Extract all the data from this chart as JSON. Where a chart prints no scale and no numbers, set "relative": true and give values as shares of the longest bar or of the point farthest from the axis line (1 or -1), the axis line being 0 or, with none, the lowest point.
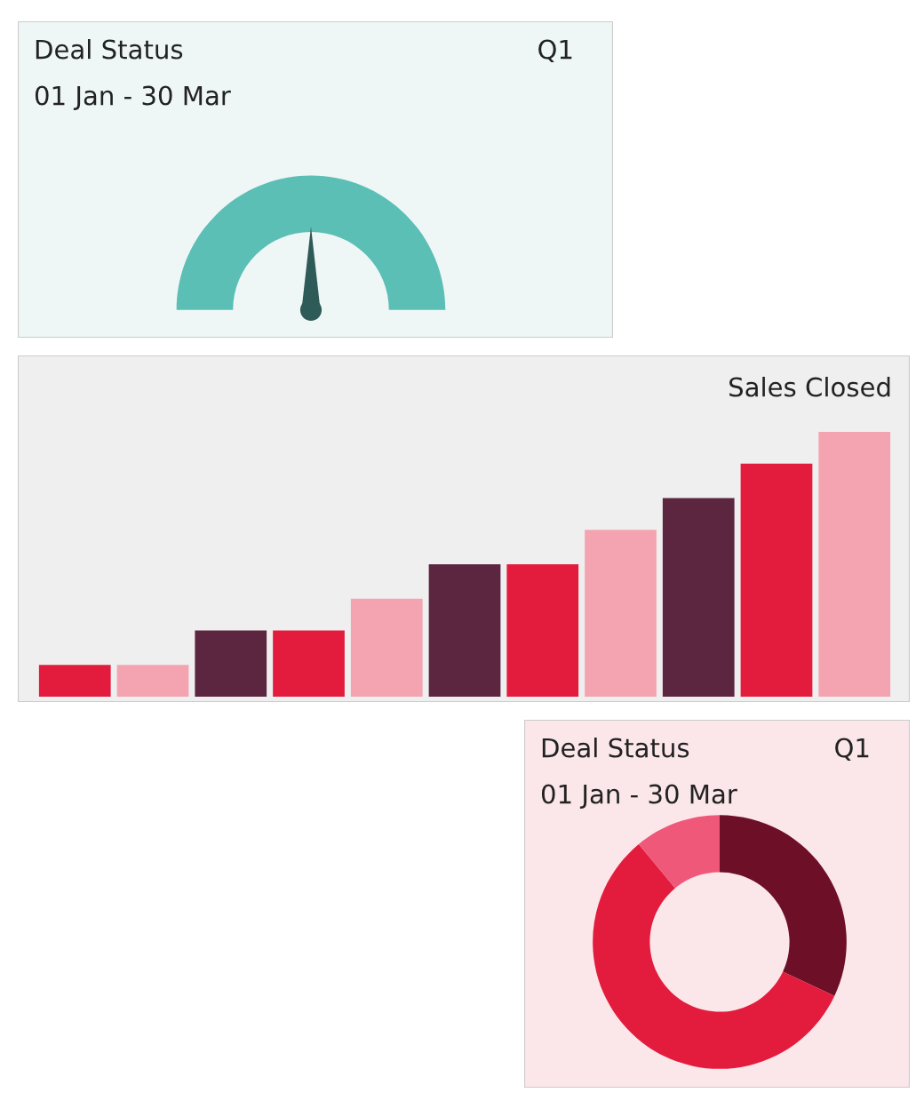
{
  "chart_data": [
    {
      "type": "pie",
      "title": "Deal Status",
      "subtitle": "01 Jan - 30 Mar",
      "annotations": [
        "Q1"
      ],
      "categories": [
        null
      ],
      "values": [
        100
      ],
      "colors": [
        "#5bbfb5"
      ],
      "needle": null
    },
    {
      "type": "bar",
      "title": "Sales Closed",
      "relative": true,
      "categories": [
        null,
        null,
        null,
        null,
        null,
        null,
        null,
        null,
        null,
        null,
        null
      ],
      "values": [
        0.12,
        0.12,
        0.25,
        0.25,
        0.37,
        0.5,
        0.5,
        0.63,
        0.75,
        0.88,
        1.0
      ],
      "colors": [
        "#e31c3d",
        "#f4a3b0",
        "#5c2640",
        "#e31c3d",
        "#f4a3b0",
        "#5c2640",
        "#e31c3d",
        "#f4a3b0",
        "#5c2640",
        "#e31c3d",
        "#f4a3b0"
      ]
    },
    {
      "type": "donut",
      "title": "Deal Status",
      "subtitle": "01 Jan - 30 Mar",
      "annotations": [
        "Q1"
      ],
      "categories": [
        null,
        null,
        null
      ],
      "values": [
        32,
        57,
        11
      ],
      "colors": [
        "#6d0f26",
        "#e31c3d",
        "#f0587a"
      ]
    }
  ]
}
